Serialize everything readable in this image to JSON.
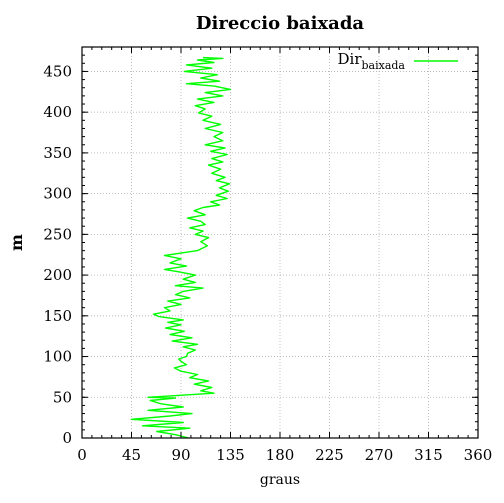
{
  "chart_data": {
    "type": "line",
    "title": "Direccio baixada",
    "xlabel": "graus",
    "ylabel": "m",
    "xlim": [
      0,
      360
    ],
    "ylim": [
      0,
      480
    ],
    "xticks": [
      0,
      45,
      90,
      135,
      180,
      225,
      270,
      315,
      360
    ],
    "yticks": [
      0,
      50,
      100,
      150,
      200,
      250,
      300,
      350,
      400,
      450
    ],
    "grid": true,
    "legend_position": "top-right",
    "series": [
      {
        "name": "Dir",
        "name_subscript": "baixada",
        "color": "#00ff00",
        "points": [
          [
            97,
            0
          ],
          [
            85,
            4
          ],
          [
            68,
            8
          ],
          [
            98,
            12
          ],
          [
            55,
            15
          ],
          [
            92,
            19
          ],
          [
            45,
            23
          ],
          [
            80,
            27
          ],
          [
            100,
            30
          ],
          [
            60,
            34
          ],
          [
            92,
            38
          ],
          [
            72,
            42
          ],
          [
            62,
            46
          ],
          [
            85,
            49
          ],
          [
            60,
            50
          ],
          [
            120,
            55
          ],
          [
            108,
            58
          ],
          [
            118,
            62
          ],
          [
            102,
            66
          ],
          [
            115,
            70
          ],
          [
            98,
            74
          ],
          [
            105,
            78
          ],
          [
            90,
            82
          ],
          [
            84,
            86
          ],
          [
            95,
            90
          ],
          [
            90,
            94
          ],
          [
            88,
            97
          ],
          [
            95,
            100
          ],
          [
            96,
            104
          ],
          [
            103,
            108
          ],
          [
            92,
            112
          ],
          [
            105,
            115
          ],
          [
            82,
            119
          ],
          [
            100,
            123
          ],
          [
            80,
            127
          ],
          [
            93,
            131
          ],
          [
            76,
            135
          ],
          [
            90,
            139
          ],
          [
            78,
            142
          ],
          [
            92,
            145
          ],
          [
            70,
            149
          ],
          [
            65,
            152
          ],
          [
            80,
            156
          ],
          [
            75,
            160
          ],
          [
            90,
            164
          ],
          [
            78,
            168
          ],
          [
            98,
            172
          ],
          [
            85,
            176
          ],
          [
            92,
            180
          ],
          [
            110,
            184
          ],
          [
            85,
            187
          ],
          [
            103,
            191
          ],
          [
            92,
            195
          ],
          [
            103,
            200
          ],
          [
            88,
            204
          ],
          [
            75,
            207
          ],
          [
            95,
            211
          ],
          [
            80,
            215
          ],
          [
            90,
            220
          ],
          [
            75,
            224
          ],
          [
            90,
            227
          ],
          [
            105,
            230
          ],
          [
            114,
            236
          ],
          [
            108,
            241
          ],
          [
            115,
            246
          ],
          [
            103,
            250
          ],
          [
            110,
            254
          ],
          [
            98,
            258
          ],
          [
            112,
            262
          ],
          [
            108,
            266
          ],
          [
            96,
            270
          ],
          [
            112,
            274
          ],
          [
            102,
            279
          ],
          [
            110,
            283
          ],
          [
            125,
            286
          ],
          [
            117,
            290
          ],
          [
            132,
            294
          ],
          [
            122,
            298
          ],
          [
            133,
            303
          ],
          [
            125,
            307
          ],
          [
            134,
            312
          ],
          [
            122,
            316
          ],
          [
            130,
            320
          ],
          [
            118,
            325
          ],
          [
            126,
            330
          ],
          [
            115,
            335
          ],
          [
            128,
            339
          ],
          [
            118,
            343
          ],
          [
            132,
            348
          ],
          [
            117,
            352
          ],
          [
            130,
            356
          ],
          [
            112,
            360
          ],
          [
            128,
            365
          ],
          [
            120,
            370
          ],
          [
            128,
            375
          ],
          [
            112,
            380
          ],
          [
            126,
            385
          ],
          [
            110,
            390
          ],
          [
            118,
            395
          ],
          [
            106,
            399
          ],
          [
            112,
            404
          ],
          [
            103,
            408
          ],
          [
            120,
            412
          ],
          [
            105,
            416
          ],
          [
            128,
            420
          ],
          [
            112,
            424
          ],
          [
            135,
            428
          ],
          [
            120,
            432
          ],
          [
            95,
            435
          ],
          [
            125,
            438
          ],
          [
            108,
            442
          ],
          [
            123,
            446
          ],
          [
            93,
            450
          ],
          [
            118,
            454
          ],
          [
            95,
            458
          ],
          [
            120,
            461
          ],
          [
            105,
            464
          ],
          [
            128,
            466
          ],
          [
            110,
            467
          ]
        ]
      }
    ]
  }
}
